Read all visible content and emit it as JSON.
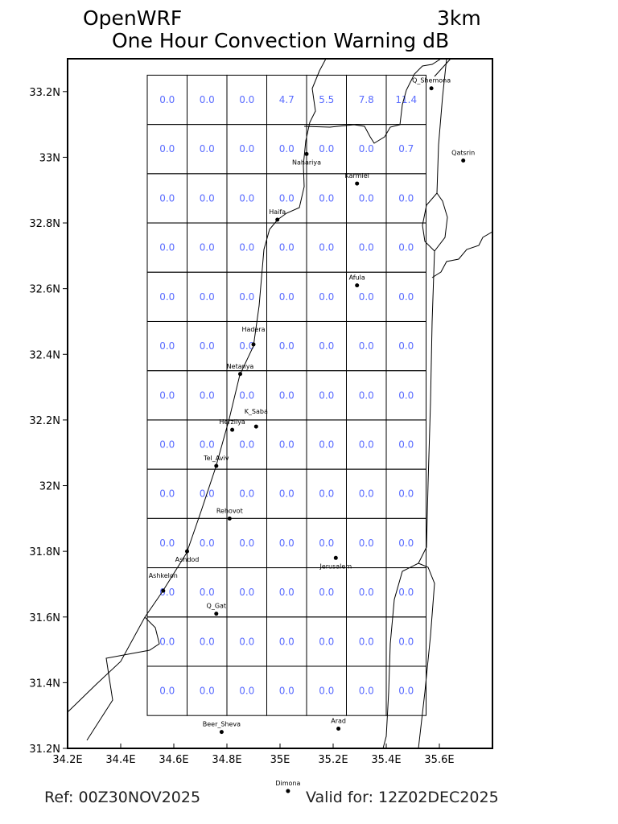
{
  "header": {
    "model": "OpenWRF",
    "resolution": "3km",
    "title": "One Hour Convection Warning dB"
  },
  "footer": {
    "ref": "Ref: 00Z30NOV2025",
    "valid": "Valid for: 12Z02DEC2025"
  },
  "map": {
    "lon_range": [
      34.2,
      35.8
    ],
    "lat_range": [
      31.2,
      33.3
    ],
    "x_ticks": [
      "34.2E",
      "34.4E",
      "34.6E",
      "34.8E",
      "35E",
      "35.2E",
      "35.4E",
      "35.6E"
    ],
    "y_ticks": [
      "33.2N",
      "33N",
      "32.8N",
      "32.6N",
      "32.4N",
      "32.2N",
      "32N",
      "31.8N",
      "31.6N",
      "31.4N",
      "31.2N"
    ],
    "value_color": "#5a6cff",
    "grid": {
      "lon_start": 34.5,
      "lat_top": 33.25,
      "cell_deg": 0.15,
      "values": [
        [
          "0.0",
          "0.0",
          "0.0",
          "4.7",
          "5.5",
          "7.8",
          "11.4"
        ],
        [
          "0.0",
          "0.0",
          "0.0",
          "0.0",
          "0.0",
          "0.0",
          "0.7"
        ],
        [
          "0.0",
          "0.0",
          "0.0",
          "0.0",
          "0.0",
          "0.0",
          "0.0"
        ],
        [
          "0.0",
          "0.0",
          "0.0",
          "0.0",
          "0.0",
          "0.0",
          "0.0"
        ],
        [
          "0.0",
          "0.0",
          "0.0",
          "0.0",
          "0.0",
          "0.0",
          "0.0"
        ],
        [
          "0.0",
          "0.0",
          "0.0",
          "0.0",
          "0.0",
          "0.0",
          "0.0"
        ],
        [
          "0.0",
          "0.0",
          "0.0",
          "0.0",
          "0.0",
          "0.0",
          "0.0"
        ],
        [
          "0.0",
          "0.0",
          "0.0",
          "0.0",
          "0.0",
          "0.0",
          "0.0"
        ],
        [
          "0.0",
          "0.0",
          "0.0",
          "0.0",
          "0.0",
          "0.0",
          "0.0"
        ],
        [
          "0.0",
          "0.0",
          "0.0",
          "0.0",
          "0.0",
          "0.0",
          "0.0"
        ],
        [
          "0.0",
          "0.0",
          "0.0",
          "0.0",
          "0.0",
          "0.0",
          "0.0"
        ],
        [
          "0.0",
          "0.0",
          "0.0",
          "0.0",
          "0.0",
          "0.0",
          "0.0"
        ],
        [
          "0.0",
          "0.0",
          "0.0",
          "0.0",
          "0.0",
          "0.0",
          "0.0"
        ]
      ]
    },
    "cities": [
      {
        "name": "Q_Shemona",
        "lon": 35.57,
        "lat": 33.21
      },
      {
        "name": "Qatsrin",
        "lon": 35.69,
        "lat": 32.99
      },
      {
        "name": "Nahariya",
        "lon": 35.1,
        "lat": 33.01
      },
      {
        "name": "Karmiel",
        "lon": 35.29,
        "lat": 32.92
      },
      {
        "name": "Haifa",
        "lon": 34.99,
        "lat": 32.81
      },
      {
        "name": "Afula",
        "lon": 35.29,
        "lat": 32.61
      },
      {
        "name": "Hadera",
        "lon": 34.9,
        "lat": 32.43
      },
      {
        "name": "Netanya",
        "lon": 34.85,
        "lat": 32.34
      },
      {
        "name": "Herzliya",
        "lon": 34.82,
        "lat": 32.17
      },
      {
        "name": "K_Saba",
        "lon": 34.91,
        "lat": 32.18
      },
      {
        "name": "Tel_Aviv",
        "lon": 34.76,
        "lat": 32.06
      },
      {
        "name": "Rehovot",
        "lon": 34.81,
        "lat": 31.9
      },
      {
        "name": "Ashdod",
        "lon": 34.65,
        "lat": 31.8
      },
      {
        "name": "Jerusalem",
        "lon": 35.21,
        "lat": 31.78
      },
      {
        "name": "Ashkelon",
        "lon": 34.56,
        "lat": 31.68
      },
      {
        "name": "Q_Gat",
        "lon": 34.76,
        "lat": 31.61
      },
      {
        "name": "Beer_Sheva",
        "lon": 34.78,
        "lat": 31.25
      },
      {
        "name": "Arad",
        "lon": 35.22,
        "lat": 31.26
      },
      {
        "name": "Dimona",
        "lon": 35.03,
        "lat": 31.07
      }
    ]
  }
}
